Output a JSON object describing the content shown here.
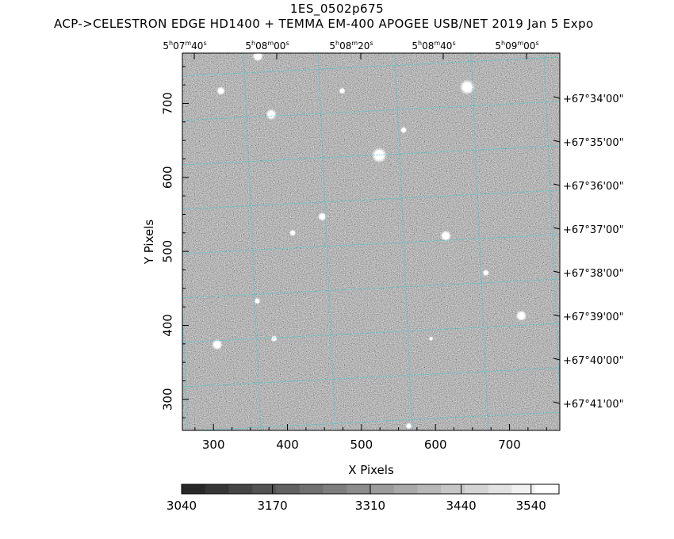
{
  "header": {
    "title": "1ES_0502p675",
    "subtitle": "ACP->CELESTRON EDGE HD1400 + TEMMA EM-400 APOGEE USB/NET   2019 Jan  5    Expo"
  },
  "chart_data": {
    "type": "heatmap",
    "title": "1ES_0502p675",
    "xlabel": "X Pixels",
    "ylabel": "Y Pixels",
    "xlim": [
      258,
      768
    ],
    "ylim": [
      258,
      768
    ],
    "x_ticks": [
      300,
      400,
      500,
      600,
      700
    ],
    "y_ticks": [
      300,
      400,
      500,
      600,
      700
    ],
    "ra_ticks": [
      {
        "h": "5",
        "m": "07",
        "s": "40"
      },
      {
        "h": "5",
        "m": "08",
        "s": "00"
      },
      {
        "h": "5",
        "m": "08",
        "s": "20"
      },
      {
        "h": "5",
        "m": "08",
        "s": "40"
      },
      {
        "h": "5",
        "m": "09",
        "s": "00"
      }
    ],
    "dec_ticks": [
      "+67°34'00\"",
      "+67°35'00\"",
      "+67°36'00\"",
      "+67°37'00\"",
      "+67°38'00\"",
      "+67°39'00\"",
      "+67°40'00\"",
      "+67°41'00\""
    ],
    "colorbar": {
      "range": [
        3040,
        3580
      ],
      "ticks": [
        3040,
        3170,
        3310,
        3440,
        3540
      ]
    },
    "grid_color": "#3ec9cf",
    "stars": [
      {
        "x": 524,
        "y": 630,
        "r": 7
      },
      {
        "x": 643,
        "y": 722,
        "r": 7
      },
      {
        "x": 378,
        "y": 685,
        "r": 5
      },
      {
        "x": 614,
        "y": 521,
        "r": 5
      },
      {
        "x": 716,
        "y": 413,
        "r": 5
      },
      {
        "x": 305,
        "y": 374,
        "r": 5
      },
      {
        "x": 310,
        "y": 717,
        "r": 4
      },
      {
        "x": 447,
        "y": 547,
        "r": 4
      },
      {
        "x": 359,
        "y": 433,
        "r": 3
      },
      {
        "x": 407,
        "y": 525,
        "r": 3
      },
      {
        "x": 557,
        "y": 664,
        "r": 3
      },
      {
        "x": 474,
        "y": 717,
        "r": 3
      },
      {
        "x": 360,
        "y": 764,
        "r": 5
      },
      {
        "x": 382,
        "y": 382,
        "r": 3
      },
      {
        "x": 564,
        "y": 264,
        "r": 3
      },
      {
        "x": 668,
        "y": 471,
        "r": 3
      },
      {
        "x": 594,
        "y": 382,
        "r": 2
      }
    ]
  }
}
